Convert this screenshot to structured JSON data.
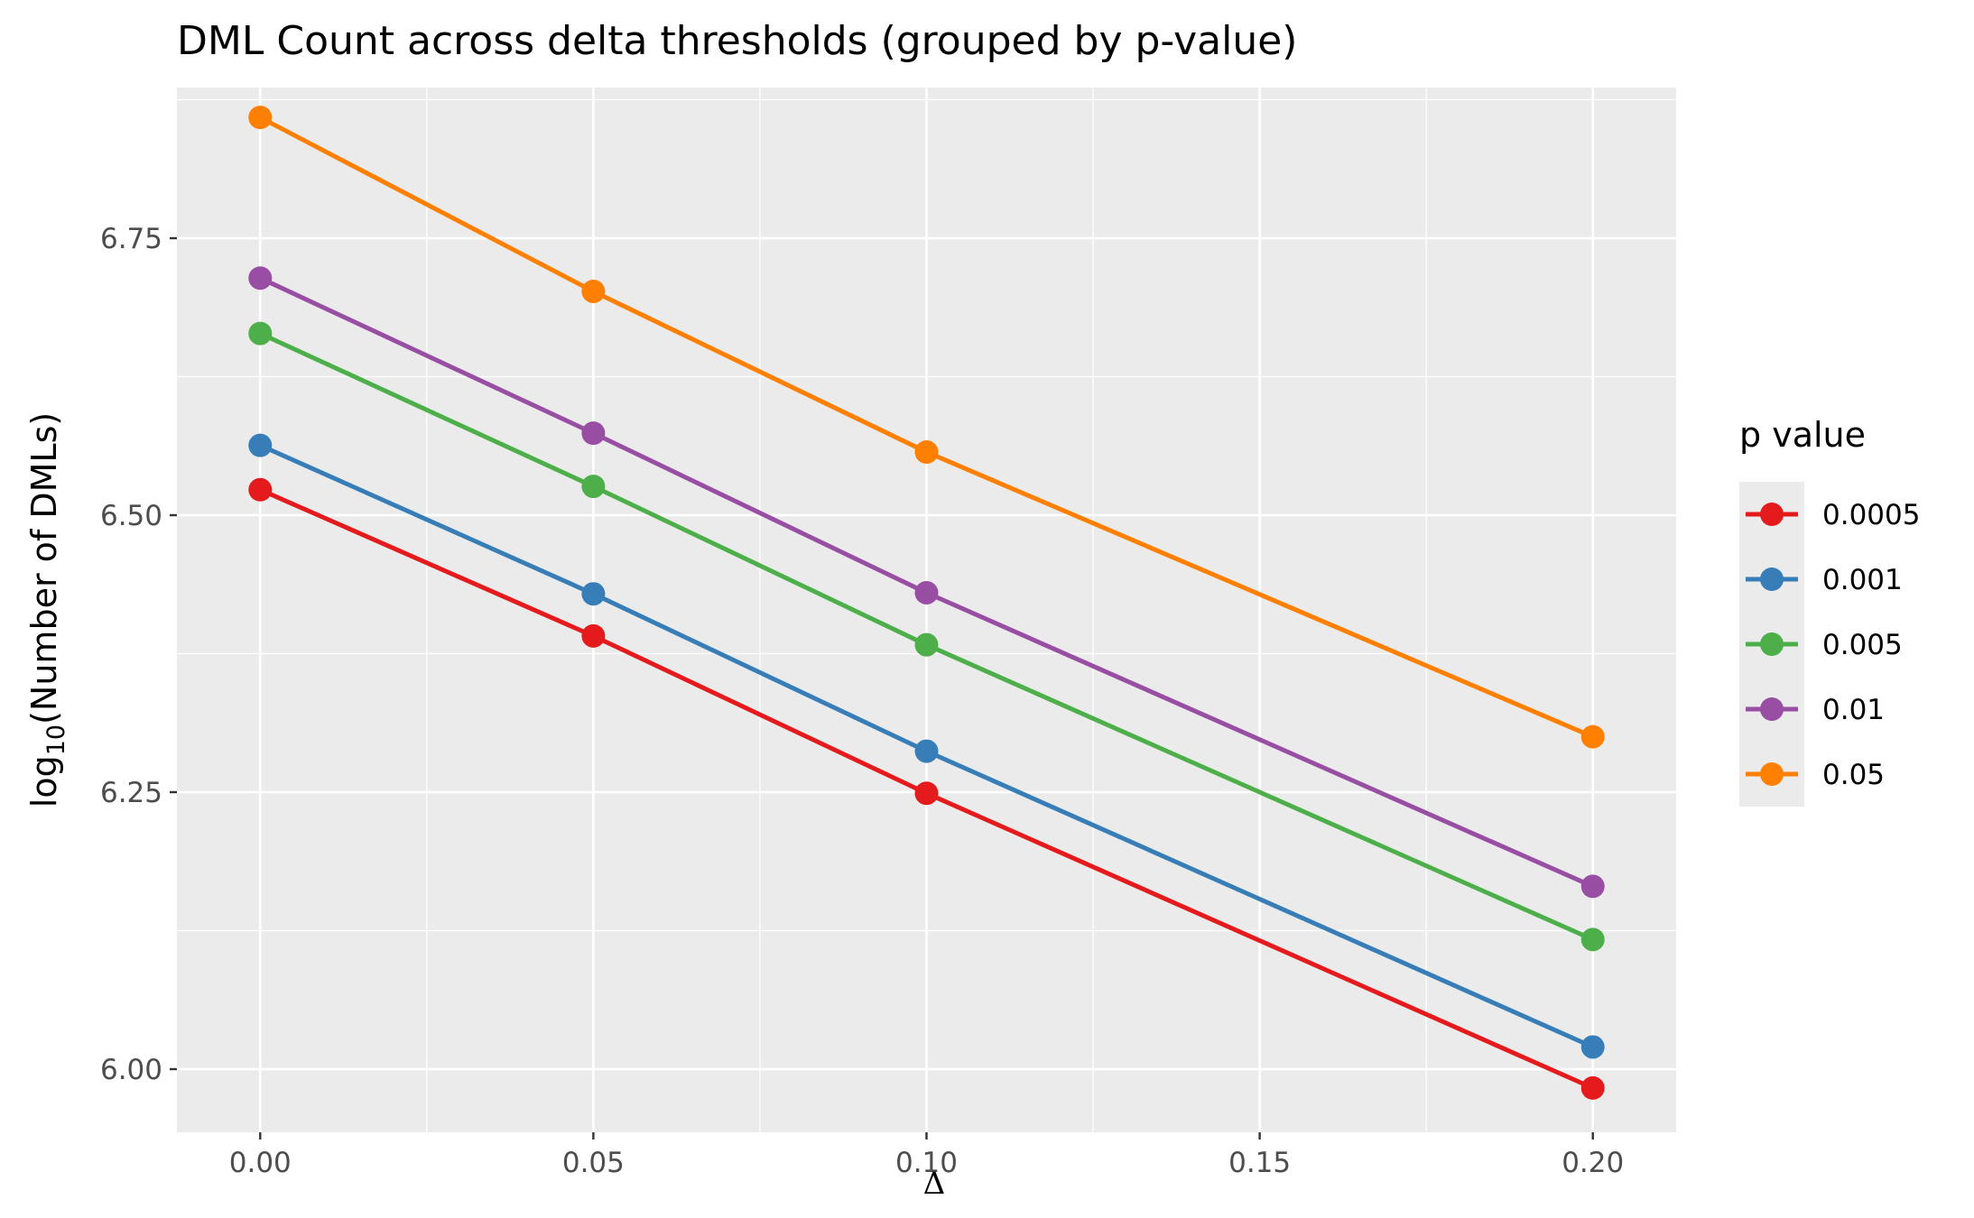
{
  "chart_data": {
    "type": "line",
    "title": "DML Count across delta thresholds (grouped by p-value)",
    "xlabel": "Δ",
    "ylabel": "log10(Number of DMLs)",
    "ylabel_parts": {
      "base": "log",
      "sub": "10",
      "rest": "(Number of DMLs)"
    },
    "xlim": [
      -0.0125,
      0.2125
    ],
    "ylim": [
      5.943,
      6.886
    ],
    "x_ticks": [
      0.0,
      0.05,
      0.1,
      0.15,
      0.2
    ],
    "x_tick_labels": [
      "0.00",
      "0.05",
      "0.10",
      "0.15",
      "0.20"
    ],
    "y_ticks": [
      6.0,
      6.25,
      6.5,
      6.75
    ],
    "y_tick_labels": [
      "6.00",
      "6.25",
      "6.50",
      "6.75"
    ],
    "x": [
      0.0,
      0.05,
      0.1,
      0.2
    ],
    "grid": true,
    "legend_title": "p value",
    "legend_position": "right",
    "series": [
      {
        "name": "0.0005",
        "color": "#E41A1C",
        "values": [
          6.523,
          6.391,
          6.249,
          5.983
        ]
      },
      {
        "name": "0.001",
        "color": "#377EB8",
        "values": [
          6.563,
          6.429,
          6.287,
          6.02
        ]
      },
      {
        "name": "0.005",
        "color": "#4DAF4A",
        "values": [
          6.664,
          6.526,
          6.383,
          6.117
        ]
      },
      {
        "name": "0.01",
        "color": "#984EA3",
        "values": [
          6.714,
          6.574,
          6.43,
          6.165
        ]
      },
      {
        "name": "0.05",
        "color": "#FF7F00",
        "values": [
          6.859,
          6.702,
          6.557,
          6.3
        ]
      }
    ]
  }
}
